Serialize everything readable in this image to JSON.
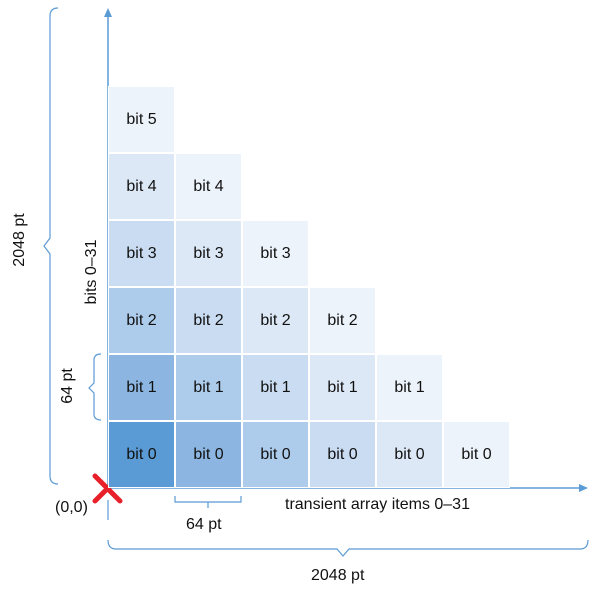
{
  "diagram": {
    "x_axis_label": "transient array items 0–31",
    "y_axis_label": "bits 0–31",
    "origin_label": "(0,0)",
    "cell_width_label": "64 pt",
    "cell_height_label": "64 pt",
    "total_width_label": "2048 pt",
    "total_height_label": "2048 pt",
    "columns": [
      [
        "bit 0",
        "bit 1",
        "bit 2",
        "bit 3",
        "bit 4",
        "bit 5"
      ],
      [
        "bit 0",
        "bit 1",
        "bit 2",
        "bit 3",
        "bit 4"
      ],
      [
        "bit 0",
        "bit 1",
        "bit 2",
        "bit 3"
      ],
      [
        "bit 0",
        "bit 1",
        "bit 2"
      ],
      [
        "bit 0",
        "bit 1"
      ],
      [
        "bit 0"
      ]
    ],
    "colors": {
      "axis": "#5b9bd5",
      "origin_marker": "#e8202a",
      "shade_levels": [
        "#5b9bd5",
        "#8cb6e1",
        "#adcbeb",
        "#c9dcf1",
        "#dde8f6",
        "#edf3fb"
      ]
    }
  }
}
